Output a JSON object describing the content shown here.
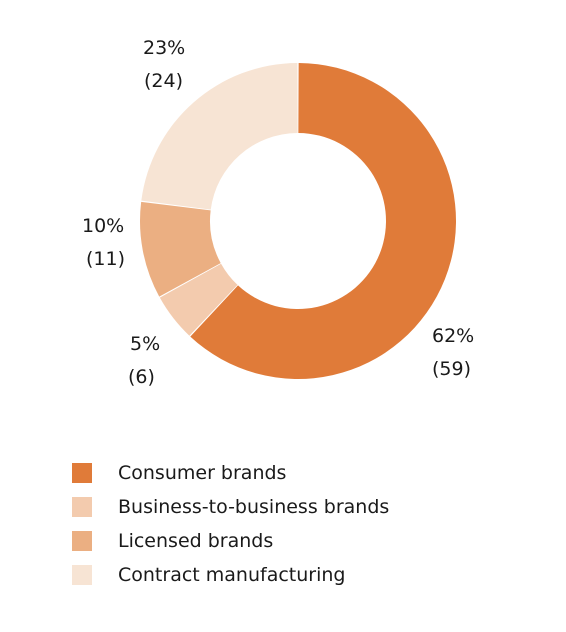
{
  "chart_data": {
    "type": "pie",
    "variant": "donut",
    "title": "",
    "legend_position": "bottom-left",
    "slices": [
      {
        "name": "Consumer brands",
        "percent": 62,
        "value": 59,
        "percent_label": "62%",
        "value_label": "(59)",
        "color": "#E07B39"
      },
      {
        "name": "Business-to-business brands",
        "percent": 5,
        "value": 6,
        "percent_label": "5%",
        "value_label": "(6)",
        "color": "#F3CBAE"
      },
      {
        "name": "Licensed brands",
        "percent": 10,
        "value": 11,
        "percent_label": "10%",
        "value_label": "(11)",
        "color": "#EBAF82"
      },
      {
        "name": "Contract manufacturing",
        "percent": 23,
        "value": 24,
        "percent_label": "23%",
        "value_label": "(24)",
        "color": "#F7E4D4"
      }
    ]
  }
}
